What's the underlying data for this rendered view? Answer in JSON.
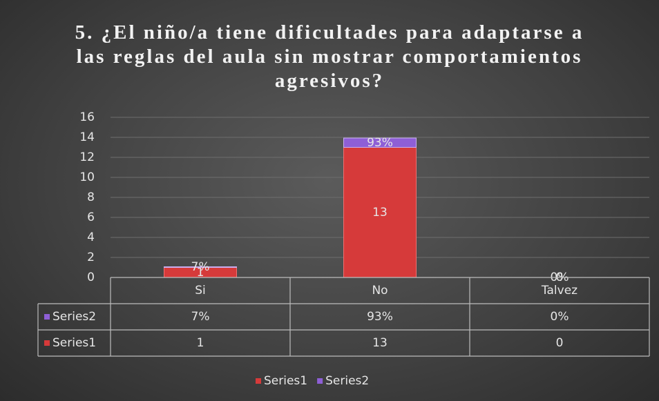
{
  "chart_data": {
    "type": "bar",
    "stacked": true,
    "title": "5. ¿El niño/a tiene dificultades para adaptarse a las reglas del aula sin mostrar comportamientos agresivos?",
    "categories": [
      "Si",
      "No",
      "Talvez"
    ],
    "series": [
      {
        "name": "Series1",
        "color": "#d63a3a",
        "values": [
          1,
          13,
          0
        ]
      },
      {
        "name": "Series2",
        "color": "#8e5fd6",
        "values": [
          0.07,
          0.93,
          0
        ],
        "value_labels": [
          "7%",
          "93%",
          "0%"
        ]
      }
    ],
    "ylim": [
      0,
      16
    ],
    "yticks": [
      0,
      2,
      4,
      6,
      8,
      10,
      12,
      14,
      16
    ],
    "grid": true,
    "legend": "bottom",
    "data_table": true
  }
}
